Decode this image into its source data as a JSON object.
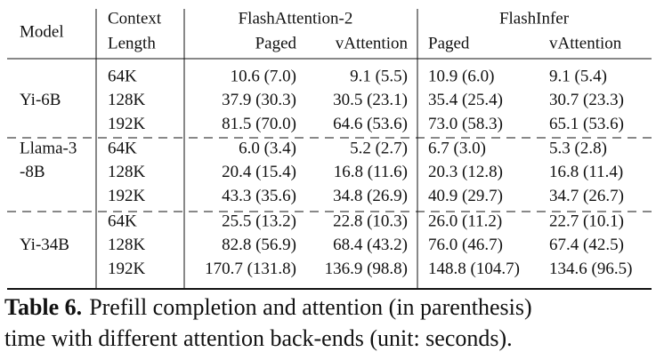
{
  "table": {
    "header": {
      "model": "Model",
      "context": [
        "Context",
        "Length"
      ],
      "groups": [
        "FlashAttention-2",
        "FlashInfer"
      ],
      "subcolumns": [
        "Paged",
        "vAttention",
        "Paged",
        "vAttention"
      ]
    },
    "rows": [
      {
        "model": [
          "Yi-6B"
        ],
        "cells": [
          [
            "64K",
            "10.6 (7.0)",
            "9.1 (5.5)",
            "10.9 (6.0)",
            "9.1 (5.4)"
          ],
          [
            "128K",
            "37.9 (30.3)",
            "30.5 (23.1)",
            "35.4 (25.4)",
            "30.7 (23.3)"
          ],
          [
            "192K",
            "81.5 (70.0)",
            "64.6 (53.6)",
            "73.0 (58.3)",
            "65.1 (53.6)"
          ]
        ]
      },
      {
        "model": [
          "Llama-3",
          "-8B"
        ],
        "cells": [
          [
            "64K",
            "6.0 (3.4)",
            "5.2 (2.7)",
            "6.7 (3.0)",
            "5.3 (2.8)"
          ],
          [
            "128K",
            "20.4 (15.4)",
            "16.8 (11.6)",
            "20.3 (12.8)",
            "16.8 (11.4)"
          ],
          [
            "192K",
            "43.3 (35.6)",
            "34.8 (26.9)",
            "40.9 (29.7)",
            "34.7 (26.7)"
          ]
        ]
      },
      {
        "model": [
          "Yi-34B"
        ],
        "cells": [
          [
            "64K",
            "25.5 (13.2)",
            "22.8 (10.3)",
            "26.0 (11.2)",
            "22.7 (10.1)"
          ],
          [
            "128K",
            "82.8 (56.9)",
            "68.4 (43.2)",
            "76.0 (46.7)",
            "67.4 (42.5)"
          ],
          [
            "192K",
            "170.7 (131.8)",
            "136.9 (98.8)",
            "148.8 (104.7)",
            "134.6 (96.5)"
          ]
        ]
      }
    ]
  },
  "caption": {
    "label": "Table 6.",
    "lines": [
      "Prefill completion and attention (in parenthesis)",
      "time with different attention back-ends (unit: seconds)."
    ]
  }
}
